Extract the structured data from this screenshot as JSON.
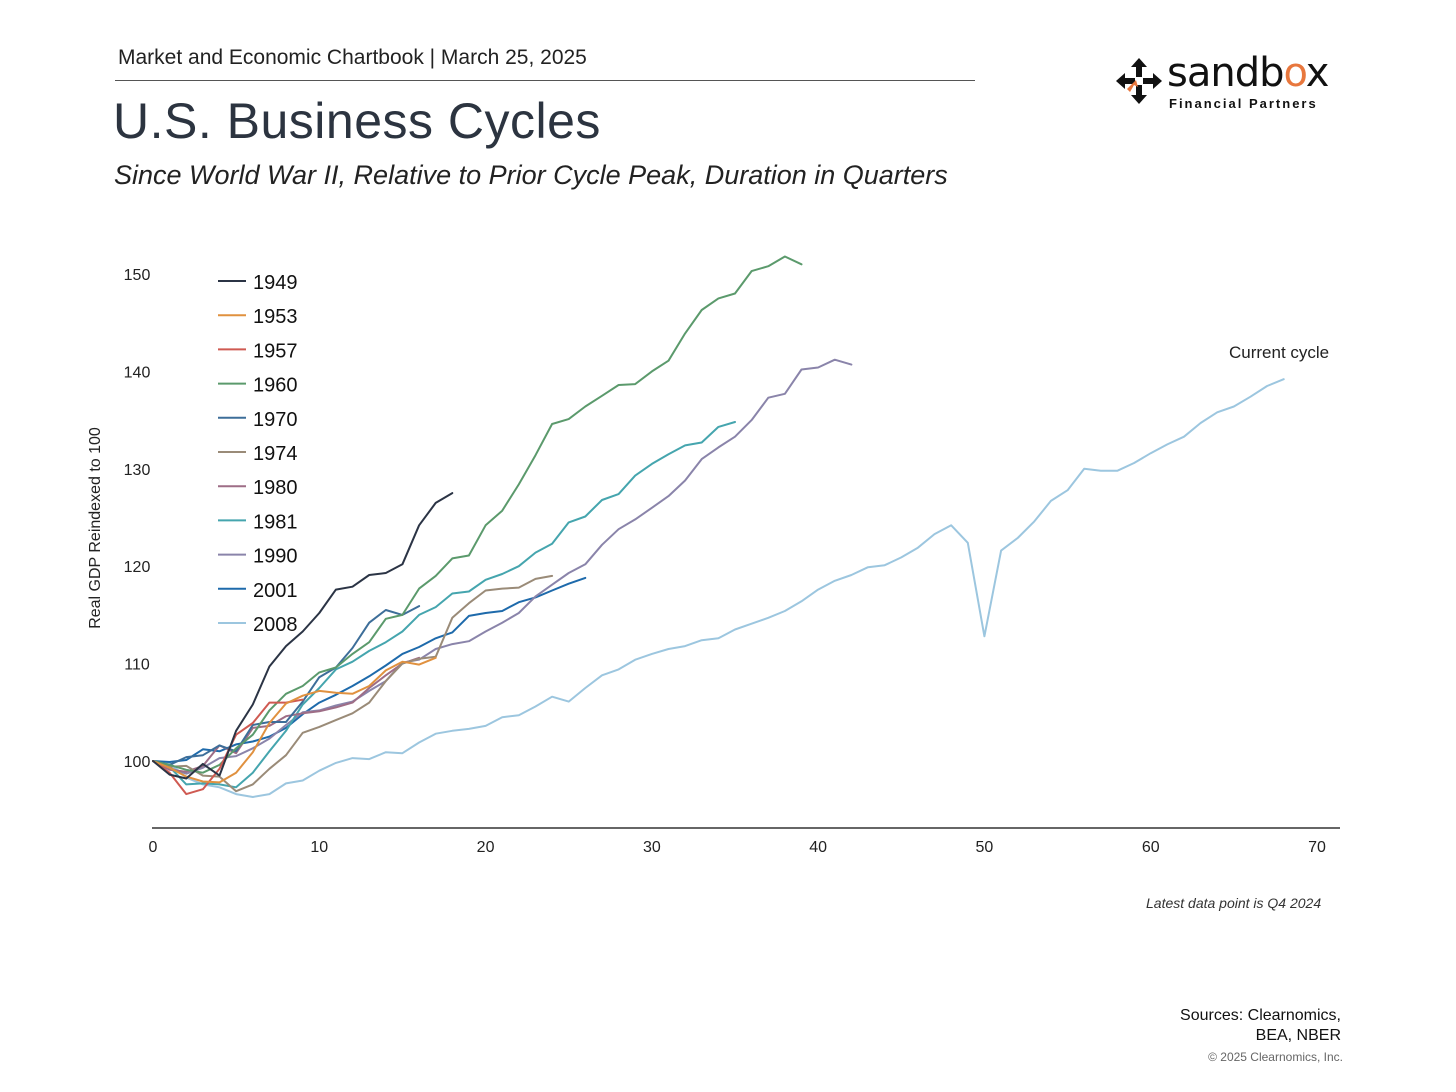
{
  "header": {
    "line": "Market and Economic Chartbook | March 25, 2025",
    "title": "U.S. Business Cycles",
    "subtitle": "Since World War II, Relative to Prior Cycle Peak, Duration in Quarters"
  },
  "logo": {
    "name_part1": "sandb",
    "name_o": "o",
    "name_part2": "x",
    "sub": "Financial Partners"
  },
  "footer": {
    "note": "Latest data point is Q4 2024",
    "sources_line1": "Sources: Clearnomics,",
    "sources_line2": "BEA, NBER",
    "copyright": "© 2025 Clearnomics, Inc."
  },
  "chart_data": {
    "type": "line",
    "title": "U.S. Business Cycles",
    "xlabel": "",
    "ylabel": "Real GDP Reindexed to 100",
    "xlim": [
      0,
      70
    ],
    "ylim": [
      93,
      152
    ],
    "x_ticks": [
      0,
      10,
      20,
      30,
      40,
      50,
      60,
      70
    ],
    "y_ticks": [
      100,
      110,
      120,
      130,
      140,
      150
    ],
    "legend_position": "top-left",
    "annotations": [
      {
        "text": "Current cycle",
        "series": "2008"
      }
    ],
    "series": [
      {
        "name": "1949",
        "color": "#2b3445",
        "values": [
          100,
          98.6,
          98.2,
          99.7,
          98.5,
          103.1,
          105.8,
          109.7,
          111.8,
          113.3,
          115.2,
          117.6,
          117.9,
          119.1,
          119.3,
          120.2,
          124.2,
          126.5,
          127.5
        ]
      },
      {
        "name": "1953",
        "color": "#e0913f",
        "values": [
          100,
          99.3,
          98.4,
          97.9,
          97.8,
          98.8,
          100.9,
          103.9,
          105.9,
          106.7,
          107.2,
          107.0,
          106.9,
          107.7,
          109.3,
          110.2,
          109.9,
          110.6
        ]
      },
      {
        "name": "1957",
        "color": "#cf5a52",
        "values": [
          100,
          98.8,
          96.6,
          97.1,
          99.2,
          102.7,
          103.9,
          106.0,
          106.0,
          106.3
        ]
      },
      {
        "name": "1960",
        "color": "#5b9a6c",
        "values": [
          100,
          99.6,
          99.1,
          98.8,
          99.6,
          101.3,
          102.7,
          105.2,
          106.9,
          107.7,
          109.1,
          109.6,
          111.0,
          112.2,
          114.6,
          115.0,
          117.7,
          119.0,
          120.8,
          121.1,
          124.2,
          125.7,
          128.4,
          131.4,
          134.6,
          135.1,
          136.4,
          137.5,
          138.6,
          138.7,
          140.0,
          141.1,
          143.9,
          146.3,
          147.5,
          148.0,
          150.3,
          150.8,
          151.8,
          151.0
        ]
      },
      {
        "name": "1970",
        "color": "#3d6e99",
        "values": [
          100,
          99.6,
          100.4,
          100.6,
          101.6,
          101.0,
          103.7,
          104.0,
          104.0,
          106.1,
          108.6,
          109.6,
          111.6,
          114.2,
          115.5,
          115.0,
          115.9
        ]
      },
      {
        "name": "1974",
        "color": "#9a8b78",
        "values": [
          100,
          99.4,
          99.5,
          98.5,
          98.4,
          96.9,
          97.6,
          99.2,
          100.6,
          102.9,
          103.5,
          104.2,
          104.9,
          106.0,
          108.2,
          110.0,
          110.5,
          110.7,
          114.7,
          116.2,
          117.5,
          117.7,
          117.8,
          118.7,
          119.0
        ]
      },
      {
        "name": "1980",
        "color": "#9e6d86",
        "values": [
          100,
          99.1,
          98.9,
          99.5,
          101.6,
          100.8,
          103.4,
          103.6,
          104.6,
          104.9,
          105.1,
          105.5,
          106.0,
          107.5,
          108.8,
          110.0,
          110.6
        ]
      },
      {
        "name": "1981",
        "color": "#45a5ae",
        "values": [
          100,
          99.4,
          97.6,
          97.7,
          97.6,
          97.3,
          98.8,
          101.0,
          103.1,
          105.8,
          107.5,
          109.4,
          110.2,
          111.3,
          112.2,
          113.3,
          115.0,
          115.8,
          117.2,
          117.4,
          118.6,
          119.2,
          120.0,
          121.4,
          122.3,
          124.5,
          125.1,
          126.8,
          127.4,
          129.3,
          130.5,
          131.5,
          132.4,
          132.7,
          134.3,
          134.8
        ]
      },
      {
        "name": "1990",
        "color": "#8a84aa",
        "values": [
          100,
          99.3,
          98.7,
          99.3,
          100.3,
          100.5,
          101.3,
          102.3,
          103.7,
          105.0,
          105.2,
          105.7,
          106.1,
          107.2,
          108.2,
          110.1,
          110.4,
          111.5,
          112.0,
          112.3,
          113.3,
          114.2,
          115.2,
          116.9,
          118.1,
          119.3,
          120.2,
          122.2,
          123.8,
          124.8,
          126.0,
          127.2,
          128.8,
          131.0,
          132.2,
          133.3,
          135.0,
          137.3,
          137.7,
          140.2,
          140.4,
          141.2,
          140.7
        ]
      },
      {
        "name": "2001",
        "color": "#1e6aab",
        "values": [
          100,
          99.9,
          100.1,
          101.2,
          101.0,
          101.7,
          102.0,
          102.5,
          103.4,
          104.8,
          106.0,
          106.8,
          107.7,
          108.7,
          109.8,
          111.0,
          111.7,
          112.6,
          113.2,
          114.9,
          115.2,
          115.4,
          116.3,
          116.8,
          117.5,
          118.2,
          118.8
        ]
      },
      {
        "name": "2008",
        "color": "#9cc6df",
        "values": [
          100,
          99.8,
          98.3,
          97.6,
          97.3,
          96.6,
          96.3,
          96.6,
          97.7,
          98.0,
          99.0,
          99.8,
          100.3,
          100.2,
          100.9,
          100.8,
          101.9,
          102.8,
          103.1,
          103.3,
          103.6,
          104.5,
          104.7,
          105.6,
          106.6,
          106.1,
          107.5,
          108.8,
          109.4,
          110.4,
          111.0,
          111.5,
          111.8,
          112.4,
          112.6,
          113.5,
          114.1,
          114.7,
          115.4,
          116.4,
          117.6,
          118.5,
          119.1,
          119.9,
          120.1,
          120.9,
          121.9,
          123.3,
          124.2,
          122.4,
          112.8,
          121.6,
          122.9,
          124.6,
          126.7,
          127.8,
          130.0,
          129.8,
          129.8,
          130.6,
          131.6,
          132.5,
          133.3,
          134.7,
          135.8,
          136.4,
          137.4,
          138.5,
          139.2
        ]
      }
    ]
  }
}
